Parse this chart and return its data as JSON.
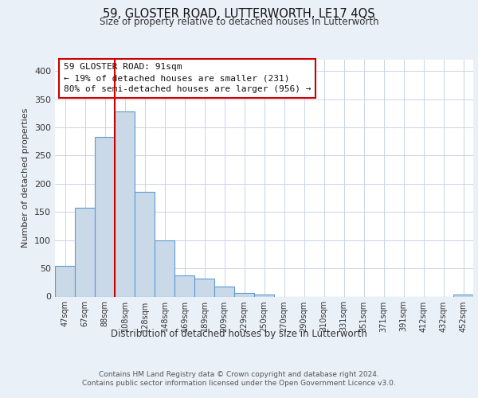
{
  "title": "59, GLOSTER ROAD, LUTTERWORTH, LE17 4QS",
  "subtitle": "Size of property relative to detached houses in Lutterworth",
  "xlabel": "Distribution of detached houses by size in Lutterworth",
  "ylabel": "Number of detached properties",
  "bar_labels": [
    "47sqm",
    "67sqm",
    "88sqm",
    "108sqm",
    "128sqm",
    "148sqm",
    "169sqm",
    "189sqm",
    "209sqm",
    "229sqm",
    "250sqm",
    "270sqm",
    "290sqm",
    "310sqm",
    "331sqm",
    "351sqm",
    "371sqm",
    "391sqm",
    "412sqm",
    "432sqm",
    "452sqm"
  ],
  "bar_values": [
    55,
    158,
    283,
    328,
    185,
    100,
    37,
    32,
    18,
    7,
    4,
    0,
    0,
    0,
    0,
    0,
    0,
    0,
    0,
    0,
    3
  ],
  "bar_color": "#c9d9e8",
  "bar_edgecolor": "#5b9bd5",
  "vline_color": "#cc0000",
  "annotation_text": "59 GLOSTER ROAD: 91sqm\n← 19% of detached houses are smaller (231)\n80% of semi-detached houses are larger (956) →",
  "annotation_box_edgecolor": "#cc0000",
  "ylim": [
    0,
    420
  ],
  "yticks": [
    0,
    50,
    100,
    150,
    200,
    250,
    300,
    350,
    400
  ],
  "bg_color": "#eaf0f8",
  "plot_bg_color": "#ffffff",
  "grid_color": "#c8d4e8",
  "footer_line1": "Contains HM Land Registry data © Crown copyright and database right 2024.",
  "footer_line2": "Contains public sector information licensed under the Open Government Licence v3.0."
}
